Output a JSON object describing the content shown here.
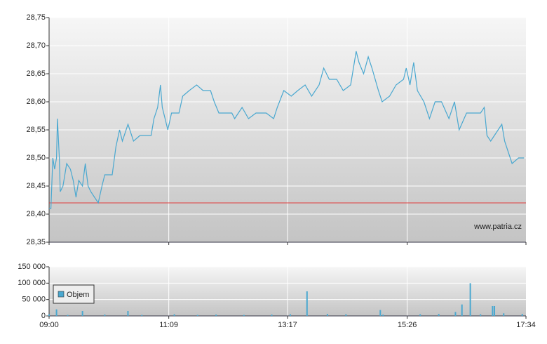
{
  "chart_data": [
    {
      "type": "line",
      "color": "#4aa8d0",
      "x": [
        "09:00",
        "09:02",
        "09:04",
        "09:06",
        "09:08",
        "09:09",
        "09:11",
        "09:12",
        "09:15",
        "09:19",
        "09:23",
        "09:26",
        "09:29",
        "09:32",
        "09:36",
        "09:39",
        "09:42",
        "09:45",
        "09:49",
        "09:53",
        "09:57",
        "10:00",
        "10:08",
        "10:12",
        "10:16",
        "10:19",
        "10:25",
        "10:31",
        "10:38",
        "10:50",
        "10:53",
        "10:57",
        "11:00",
        "11:02",
        "11:05",
        "11:08",
        "11:12",
        "11:20",
        "11:24",
        "11:31",
        "11:39",
        "11:46",
        "11:54",
        "11:58",
        "12:03",
        "12:09",
        "12:17",
        "12:20",
        "12:28",
        "12:35",
        "12:43",
        "12:54",
        "13:02",
        "13:06",
        "13:13",
        "13:21",
        "13:28",
        "13:36",
        "13:43",
        "13:51",
        "13:56",
        "14:02",
        "14:10",
        "14:17",
        "14:25",
        "14:31",
        "14:34",
        "14:39",
        "14:44",
        "14:48",
        "14:55",
        "14:59",
        "15:07",
        "15:14",
        "15:22",
        "15:25",
        "15:29",
        "15:33",
        "15:37",
        "15:44",
        "15:50",
        "15:56",
        "16:03",
        "16:11",
        "16:17",
        "16:22",
        "16:30",
        "16:37",
        "16:45",
        "16:49",
        "16:52",
        "16:56",
        "17:04",
        "17:08",
        "17:11",
        "17:15",
        "17:19",
        "17:26",
        "17:32"
      ],
      "values": [
        28.41,
        28.41,
        28.5,
        28.48,
        28.5,
        28.57,
        28.5,
        28.44,
        28.45,
        28.49,
        28.48,
        28.46,
        28.43,
        28.46,
        28.45,
        28.49,
        28.45,
        28.44,
        28.43,
        28.42,
        28.45,
        28.47,
        28.47,
        28.52,
        28.55,
        28.53,
        28.56,
        28.53,
        28.54,
        28.54,
        28.57,
        28.59,
        28.63,
        28.59,
        28.57,
        28.55,
        28.58,
        28.58,
        28.61,
        28.62,
        28.63,
        28.62,
        28.62,
        28.6,
        28.58,
        28.58,
        28.58,
        28.57,
        28.59,
        28.57,
        28.58,
        28.58,
        28.57,
        28.59,
        28.62,
        28.61,
        28.62,
        28.63,
        28.61,
        28.63,
        28.66,
        28.64,
        28.64,
        28.62,
        28.63,
        28.69,
        28.67,
        28.65,
        28.68,
        28.66,
        28.62,
        28.6,
        28.61,
        28.63,
        28.64,
        28.66,
        28.63,
        28.67,
        28.62,
        28.6,
        28.57,
        28.6,
        28.6,
        28.57,
        28.6,
        28.55,
        28.58,
        28.58,
        28.58,
        28.59,
        28.54,
        28.53,
        28.55,
        28.56,
        28.53,
        28.51,
        28.49,
        28.5,
        28.5
      ],
      "xlim": [
        "09:00",
        "17:34"
      ],
      "xticks": [
        "09:00",
        "11:09",
        "13:17",
        "15:26",
        "17:34"
      ],
      "ylim": [
        28.35,
        28.75
      ],
      "yticks": [
        {
          "value": 28.35,
          "label": "28,35"
        },
        {
          "value": 28.4,
          "label": "28,40"
        },
        {
          "value": 28.45,
          "label": "28,45"
        },
        {
          "value": 28.5,
          "label": "28,50"
        },
        {
          "value": 28.55,
          "label": "28,55"
        },
        {
          "value": 28.6,
          "label": "28,60"
        },
        {
          "value": 28.65,
          "label": "28,65"
        },
        {
          "value": 28.7,
          "label": "28,70"
        },
        {
          "value": 28.75,
          "label": "28,75"
        }
      ],
      "reference_line": {
        "value": 28.42,
        "color": "#e03c3c"
      },
      "grid": true,
      "watermark": "www.patria.cz"
    },
    {
      "type": "bar",
      "x": [
        "09:00",
        "09:08",
        "09:20",
        "09:36",
        "10:00",
        "10:25",
        "10:40",
        "11:15",
        "11:40",
        "12:00",
        "12:30",
        "13:00",
        "13:20",
        "13:38",
        "14:00",
        "14:20",
        "14:57",
        "15:00",
        "15:40",
        "16:00",
        "16:18",
        "16:25",
        "16:34",
        "16:45",
        "16:58",
        "17:00",
        "17:10",
        "17:30"
      ],
      "series": [
        {
          "name": "Objem",
          "color": "#4aa8d0",
          "values": [
            5000,
            20000,
            3000,
            15000,
            4000,
            15000,
            3000,
            5000,
            3000,
            4000,
            3000,
            4000,
            5000,
            75000,
            6000,
            5000,
            18000,
            4000,
            5000,
            6000,
            12000,
            35000,
            100000,
            5000,
            30000,
            30000,
            8000,
            6000
          ]
        }
      ],
      "xlim": [
        "09:00",
        "17:34"
      ],
      "xticks": [
        "09:00",
        "11:09",
        "13:17",
        "15:26",
        "17:34"
      ],
      "ylim": [
        0,
        150000
      ],
      "yticks": [
        0,
        {
          "value": 50000,
          "label": "50 000"
        },
        {
          "value": 100000,
          "label": "100 000"
        },
        {
          "value": 150000,
          "label": "150 000"
        }
      ],
      "grid": true,
      "legend": "upper left"
    }
  ]
}
